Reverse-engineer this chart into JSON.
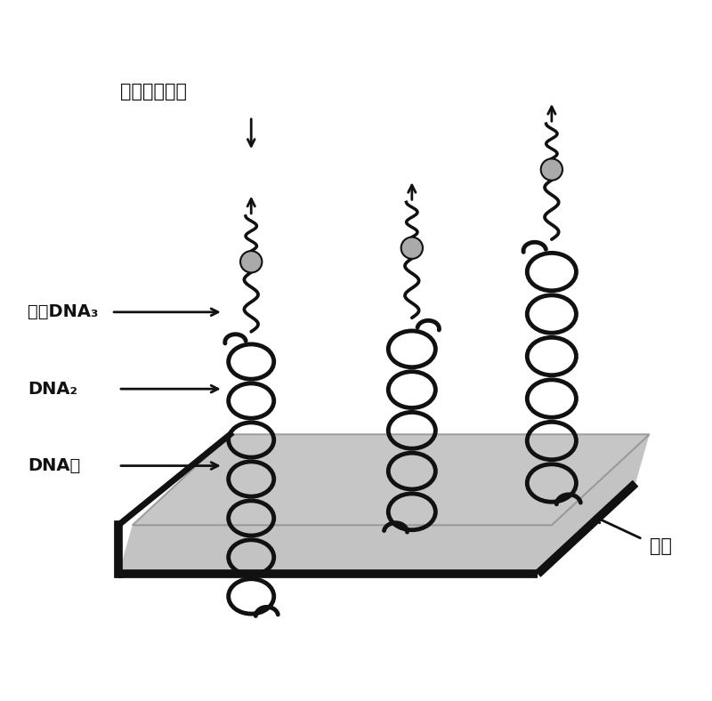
{
  "title": "",
  "bg_color": "#ffffff",
  "label_rare_earth": "稀土钓配合物",
  "label_target_dna": "目标DNA₃",
  "label_dna2": "DNA₂",
  "label_dna1": "DNA",
  "label_glass": "玻片",
  "strand_color": "#111111",
  "surface_color": "#cccccc",
  "arrow_color": "#111111",
  "bead_color": "#aaaaaa"
}
